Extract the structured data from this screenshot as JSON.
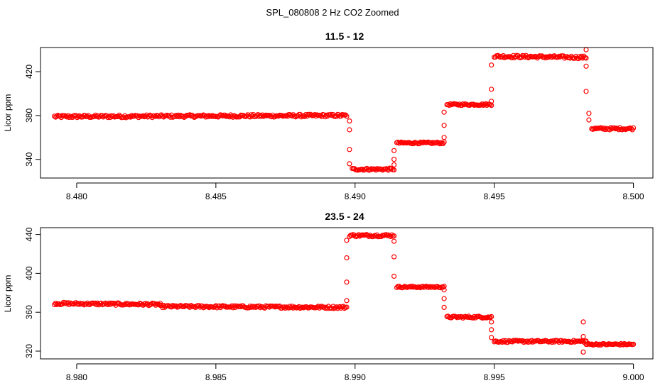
{
  "figure_title": "SPL_080808  2 Hz CO2 Zoomed",
  "colors": {
    "points": "#ff0000",
    "axes": "#000000",
    "background": "#ffffff"
  },
  "chart_data": [
    {
      "type": "scatter",
      "title": "11.5 - 12",
      "xlabel": "",
      "ylabel": "Licor ppm",
      "xlim": [
        8.4787,
        8.5007
      ],
      "ylim": [
        323,
        442
      ],
      "xticks": [
        8.48,
        8.485,
        8.49,
        8.495,
        8.5
      ],
      "xtick_labels": [
        "8.480",
        "8.485",
        "8.490",
        "8.495",
        "8.500"
      ],
      "yticks": [
        340,
        380,
        420
      ],
      "ytick_labels": [
        "340",
        "380",
        "420"
      ],
      "grid": false,
      "marker": "open-circle",
      "series": [
        {
          "segments": [
            {
              "x0": 8.4792,
              "x1": 8.4897,
              "y0": 379,
              "y1": 380,
              "noise": 1.2
            },
            {
              "x0": 8.4899,
              "x1": 8.4914,
              "y0": 331,
              "y1": 331,
              "noise": 1.0
            },
            {
              "x0": 8.4915,
              "x1": 8.4932,
              "y0": 355,
              "y1": 355,
              "noise": 0.8
            },
            {
              "x0": 8.4933,
              "x1": 8.4949,
              "y0": 390,
              "y1": 390,
              "noise": 0.8
            },
            {
              "x0": 8.495,
              "x1": 8.4983,
              "y0": 434,
              "y1": 433,
              "noise": 1.2
            },
            {
              "x0": 8.4985,
              "x1": 8.5,
              "y0": 368,
              "y1": 368,
              "noise": 1.0
            }
          ],
          "transitions": [
            {
              "x": 8.4898,
              "y": 375
            },
            {
              "x": 8.4898,
              "y": 367
            },
            {
              "x": 8.4898,
              "y": 349
            },
            {
              "x": 8.4898,
              "y": 336
            },
            {
              "x": 8.4914,
              "y": 335
            },
            {
              "x": 8.4914,
              "y": 340
            },
            {
              "x": 8.4914,
              "y": 348
            },
            {
              "x": 8.4932,
              "y": 360
            },
            {
              "x": 8.4932,
              "y": 371
            },
            {
              "x": 8.4932,
              "y": 383
            },
            {
              "x": 8.4949,
              "y": 393
            },
            {
              "x": 8.4949,
              "y": 404
            },
            {
              "x": 8.4949,
              "y": 426
            },
            {
              "x": 8.4983,
              "y": 440
            },
            {
              "x": 8.4983,
              "y": 425
            },
            {
              "x": 8.4983,
              "y": 402
            },
            {
              "x": 8.4984,
              "y": 382
            },
            {
              "x": 8.4984,
              "y": 376
            }
          ]
        }
      ]
    },
    {
      "type": "scatter",
      "title": "23.5 - 24",
      "xlabel": "",
      "ylabel": "Licor ppm",
      "xlim": [
        8.9787,
        9.0007
      ],
      "ylim": [
        312,
        447
      ],
      "xticks": [
        8.98,
        8.985,
        8.99,
        8.995,
        9.0
      ],
      "xtick_labels": [
        "8.980",
        "8.985",
        "8.990",
        "8.995",
        "9.000"
      ],
      "yticks": [
        320,
        360,
        400,
        440
      ],
      "ytick_labels": [
        "320",
        "360",
        "400",
        "440"
      ],
      "grid": false,
      "marker": "open-circle",
      "series": [
        {
          "segments": [
            {
              "x0": 8.9792,
              "x1": 8.983,
              "y0": 369,
              "y1": 368,
              "noise": 1.2
            },
            {
              "x0": 8.983,
              "x1": 8.9897,
              "y0": 366,
              "y1": 365,
              "noise": 1.2
            },
            {
              "x0": 8.9898,
              "x1": 8.9914,
              "y0": 439,
              "y1": 439,
              "noise": 1.2
            },
            {
              "x0": 8.9915,
              "x1": 8.9932,
              "y0": 386,
              "y1": 386,
              "noise": 0.8
            },
            {
              "x0": 8.9933,
              "x1": 8.9949,
              "y0": 355,
              "y1": 355,
              "noise": 1.0
            },
            {
              "x0": 8.995,
              "x1": 8.9983,
              "y0": 330,
              "y1": 330,
              "noise": 1.0
            },
            {
              "x0": 8.9983,
              "x1": 9.0,
              "y0": 327,
              "y1": 327,
              "noise": 0.8
            }
          ],
          "transitions": [
            {
              "x": 8.9897,
              "y": 372
            },
            {
              "x": 8.9897,
              "y": 391
            },
            {
              "x": 8.9897,
              "y": 416
            },
            {
              "x": 8.9897,
              "y": 434
            },
            {
              "x": 8.9914,
              "y": 433
            },
            {
              "x": 8.9914,
              "y": 417
            },
            {
              "x": 8.9914,
              "y": 397
            },
            {
              "x": 8.9932,
              "y": 383
            },
            {
              "x": 8.9932,
              "y": 374
            },
            {
              "x": 8.9932,
              "y": 365
            },
            {
              "x": 8.9949,
              "y": 350
            },
            {
              "x": 8.9949,
              "y": 342
            },
            {
              "x": 8.9949,
              "y": 334
            },
            {
              "x": 8.9982,
              "y": 350
            },
            {
              "x": 8.9982,
              "y": 335
            },
            {
              "x": 8.9982,
              "y": 319
            }
          ]
        }
      ]
    }
  ]
}
